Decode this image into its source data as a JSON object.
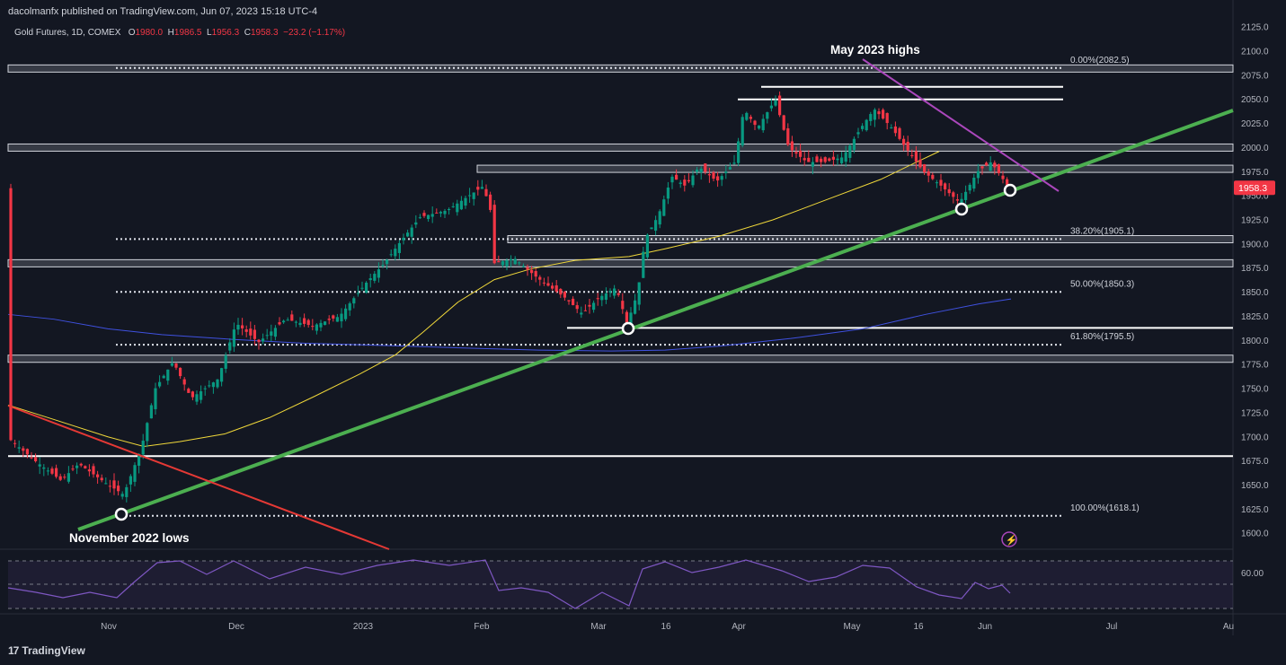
{
  "header": {
    "published": "dacolmanfx published on TradingView.com, Jun 07, 2023 15:18 UTC-4"
  },
  "legend": {
    "symbol": "Gold Futures, 1D, COMEX",
    "open_label": "O",
    "open": "1980.0",
    "high_label": "H",
    "high": "1986.5",
    "low_label": "L",
    "low": "1956.3",
    "close_label": "C",
    "close": "1958.3",
    "change": "−23.2 (−1.17%)"
  },
  "footer": {
    "brand": "TradingView",
    "logo_glyph": "17"
  },
  "chart_data": {
    "type": "candlestick",
    "symbol": "Gold Futures, 1D, COMEX",
    "y_range": [
      1585,
      2135
    ],
    "y_ticks": [
      1600,
      1625,
      1650,
      1675,
      1700,
      1725,
      1750,
      1775,
      1800,
      1825,
      1850,
      1875,
      1900,
      1925,
      1950,
      1975,
      2000,
      2025,
      2050,
      2075,
      2100,
      2125
    ],
    "x_axis_labels": [
      "Nov",
      "Dec",
      "2023",
      "Feb",
      "Mar",
      "16",
      "Apr",
      "May",
      "16",
      "Jun",
      "Jul",
      "Au"
    ],
    "last_price": "1958.3",
    "last_price_color": "#f23645",
    "fib_levels": [
      {
        "label": "0.00%(2082.5)",
        "value": 2082.5
      },
      {
        "label": "38.20%(1905.1)",
        "value": 1905.1
      },
      {
        "label": "50.00%(1850.3)",
        "value": 1850.3
      },
      {
        "label": "61.80%(1795.5)",
        "value": 1795.5
      },
      {
        "label": "100.00%(1618.1)",
        "value": 1618.1
      }
    ],
    "horizontal_bands": [
      2082,
      2000,
      1978,
      1905,
      1880,
      1781
    ],
    "horizontal_lines": [
      {
        "value": 2063
      },
      {
        "value": 2050
      },
      {
        "value": 1680
      },
      {
        "value": 1813
      }
    ],
    "annotations": [
      {
        "text": "May 2023 highs"
      },
      {
        "text": "November 2022 lows"
      }
    ],
    "rsi_level_label": "60.00",
    "colors": {
      "up": "#089981",
      "down": "#f23645",
      "ma50": "#f0d83a",
      "ma200": "#3f51e0",
      "trend_support": "#4caf50",
      "trend_red": "#e53935",
      "trend_purple": "#ab47bc",
      "rsi": "#7e57c2",
      "background": "#131722"
    }
  }
}
